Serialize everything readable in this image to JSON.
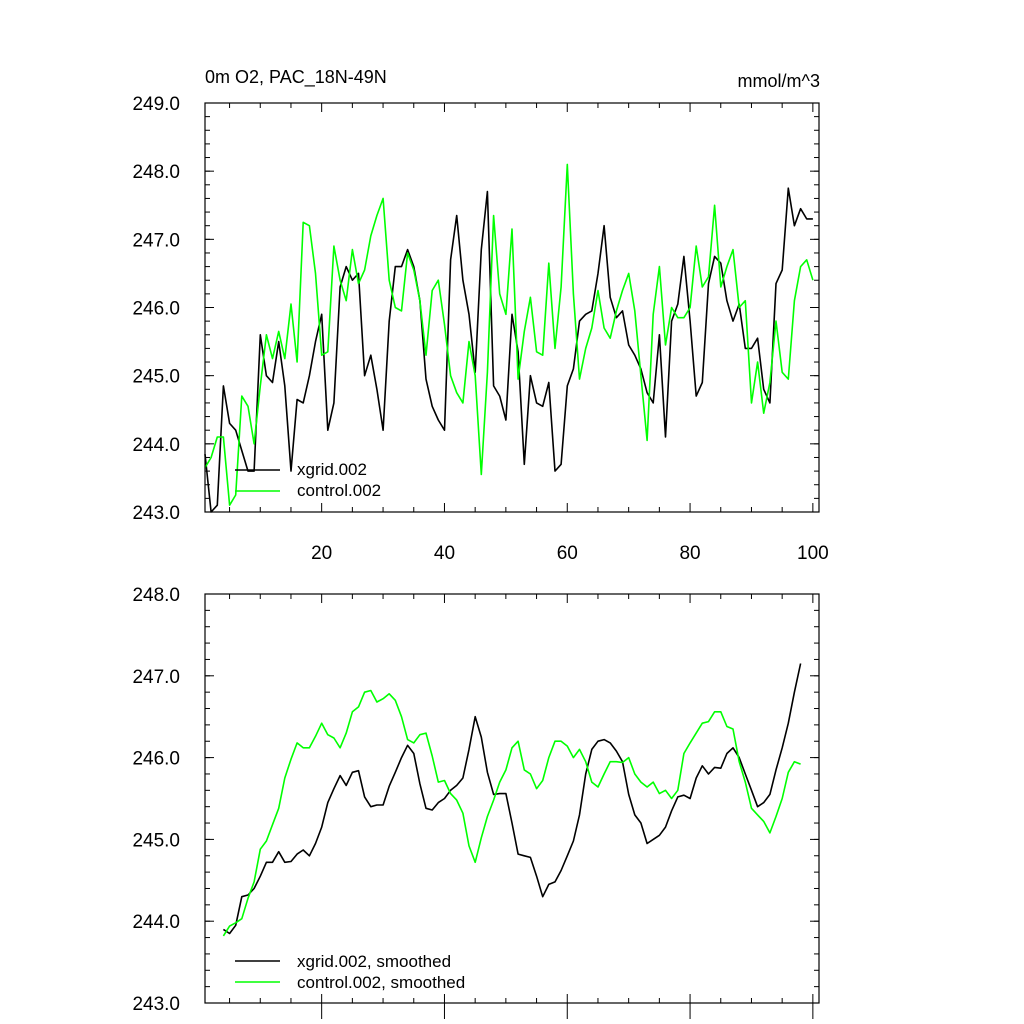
{
  "colors": {
    "xgrid": "#000000",
    "control": "#00ff00",
    "axis": "#000000",
    "background": "#ffffff"
  },
  "chart_data": [
    {
      "type": "line",
      "title": "0m O2, PAC_18N-49N",
      "units": "mmol/m^3",
      "xlabel": "",
      "ylabel": "",
      "xlim": [
        1,
        101
      ],
      "ylim": [
        243.0,
        249.0
      ],
      "yticks": [
        243.0,
        244.0,
        245.0,
        246.0,
        247.0,
        248.0,
        249.0
      ],
      "ytick_labels": [
        "243.0",
        "244.0",
        "245.0",
        "246.0",
        "247.0",
        "248.0",
        "249.0"
      ],
      "xticks": [
        20,
        40,
        60,
        80,
        100
      ],
      "xtick_labels": [
        "20",
        "40",
        "60",
        "80",
        "100"
      ],
      "legend_position": "bottom-left",
      "series": [
        {
          "name": "xgrid.002",
          "color": "#000000",
          "x": [
            1,
            2,
            3,
            4,
            5,
            6,
            7,
            8,
            9,
            10,
            11,
            12,
            13,
            14,
            15,
            16,
            17,
            18,
            19,
            20,
            21,
            22,
            23,
            24,
            25,
            26,
            27,
            28,
            29,
            30,
            31,
            32,
            33,
            34,
            35,
            36,
            37,
            38,
            39,
            40,
            41,
            42,
            43,
            44,
            45,
            46,
            47,
            48,
            49,
            50,
            51,
            52,
            53,
            54,
            55,
            56,
            57,
            58,
            59,
            60,
            61,
            62,
            63,
            64,
            65,
            66,
            67,
            68,
            69,
            70,
            71,
            72,
            73,
            74,
            75,
            76,
            77,
            78,
            79,
            80,
            81,
            82,
            83,
            84,
            85,
            86,
            87,
            88,
            89,
            90,
            91,
            92,
            93,
            94,
            95,
            96,
            97,
            98,
            99,
            100
          ],
          "values": [
            243.85,
            243.0,
            243.1,
            244.85,
            244.3,
            244.2,
            243.9,
            243.6,
            243.6,
            245.6,
            245.0,
            244.9,
            245.5,
            244.85,
            243.6,
            244.65,
            244.6,
            245.0,
            245.5,
            245.9,
            244.2,
            244.6,
            246.3,
            246.6,
            246.4,
            246.5,
            245.0,
            245.3,
            244.8,
            244.2,
            245.8,
            246.6,
            246.6,
            246.85,
            246.6,
            246.1,
            244.95,
            244.55,
            244.35,
            244.2,
            246.7,
            247.35,
            246.4,
            245.9,
            245.05,
            246.85,
            247.7,
            244.85,
            244.7,
            244.35,
            245.9,
            245.35,
            243.7,
            245.0,
            244.6,
            244.55,
            244.9,
            243.6,
            243.7,
            244.85,
            245.1,
            245.8,
            245.9,
            245.95,
            246.5,
            247.2,
            246.15,
            245.85,
            245.95,
            245.45,
            245.3,
            245.1,
            244.75,
            244.6,
            245.6,
            244.1,
            245.8,
            246.05,
            246.75,
            245.8,
            244.7,
            244.9,
            246.35,
            246.75,
            246.65,
            246.1,
            245.8,
            246.05,
            245.4,
            245.4,
            245.55,
            244.8,
            244.6,
            246.35,
            246.55,
            247.75,
            247.2,
            247.45,
            247.3,
            247.3
          ]
        },
        {
          "name": "control.002",
          "color": "#00ff00",
          "x": [
            1,
            2,
            3,
            4,
            5,
            6,
            7,
            8,
            9,
            10,
            11,
            12,
            13,
            14,
            15,
            16,
            17,
            18,
            19,
            20,
            21,
            22,
            23,
            24,
            25,
            26,
            27,
            28,
            29,
            30,
            31,
            32,
            33,
            34,
            35,
            36,
            37,
            38,
            39,
            40,
            41,
            42,
            43,
            44,
            45,
            46,
            47,
            48,
            49,
            50,
            51,
            52,
            53,
            54,
            55,
            56,
            57,
            58,
            59,
            60,
            61,
            62,
            63,
            64,
            65,
            66,
            67,
            68,
            69,
            70,
            71,
            72,
            73,
            74,
            75,
            76,
            77,
            78,
            79,
            80,
            81,
            82,
            83,
            84,
            85,
            86,
            87,
            88,
            89,
            90,
            91,
            92,
            93,
            94,
            95,
            96,
            97,
            98,
            99,
            100
          ],
          "values": [
            243.65,
            243.8,
            244.1,
            244.1,
            243.1,
            243.25,
            244.7,
            244.55,
            244.0,
            244.85,
            245.6,
            245.25,
            245.65,
            245.25,
            246.05,
            245.2,
            247.25,
            247.2,
            246.5,
            245.3,
            245.35,
            246.9,
            246.4,
            246.1,
            246.85,
            246.35,
            246.55,
            247.05,
            247.35,
            247.6,
            246.4,
            246.0,
            245.95,
            246.8,
            246.55,
            246.1,
            245.3,
            246.25,
            246.4,
            245.75,
            245.0,
            244.75,
            244.6,
            245.5,
            245.0,
            243.55,
            245.05,
            247.35,
            246.2,
            245.9,
            247.15,
            244.95,
            245.65,
            246.15,
            245.35,
            245.3,
            246.65,
            245.4,
            246.3,
            248.1,
            246.2,
            244.95,
            245.4,
            245.7,
            246.25,
            245.7,
            245.55,
            245.95,
            246.25,
            246.5,
            245.95,
            245.0,
            244.05,
            245.9,
            246.6,
            245.45,
            246.0,
            245.85,
            245.85,
            246.0,
            246.9,
            246.3,
            246.45,
            247.5,
            246.3,
            246.6,
            246.85,
            246.0,
            246.1,
            244.6,
            245.2,
            244.45,
            244.9,
            245.8,
            245.05,
            244.95,
            246.1,
            246.6,
            246.7,
            246.4
          ]
        }
      ]
    },
    {
      "type": "line",
      "title": "",
      "xlabel": "",
      "ylabel": "",
      "xlim": [
        1,
        101
      ],
      "ylim": [
        243.0,
        248.0
      ],
      "yticks": [
        243.0,
        244.0,
        245.0,
        246.0,
        247.0,
        248.0
      ],
      "ytick_labels": [
        "243.0",
        "244.0",
        "245.0",
        "246.0",
        "247.0",
        "248.0"
      ],
      "xticks": [
        20,
        40,
        60,
        80,
        100
      ],
      "xtick_labels": [],
      "legend_position": "bottom-left",
      "series": [
        {
          "name": "xgrid.002, smoothed",
          "color": "#000000",
          "x": [
            4,
            5,
            6,
            7,
            8,
            9,
            10,
            11,
            12,
            13,
            14,
            15,
            16,
            17,
            18,
            19,
            20,
            21,
            22,
            23,
            24,
            25,
            26,
            27,
            28,
            29,
            30,
            31,
            32,
            33,
            34,
            35,
            36,
            37,
            38,
            39,
            40,
            41,
            42,
            43,
            44,
            45,
            46,
            47,
            48,
            49,
            50,
            51,
            52,
            53,
            54,
            55,
            56,
            57,
            58,
            59,
            60,
            61,
            62,
            63,
            64,
            65,
            66,
            67,
            68,
            69,
            70,
            71,
            72,
            73,
            74,
            75,
            76,
            77,
            78,
            79,
            80,
            81,
            82,
            83,
            84,
            85,
            86,
            87,
            88,
            89,
            90,
            91,
            92,
            93,
            94,
            95,
            96,
            97,
            98
          ],
          "values": [
            243.9,
            243.85,
            243.95,
            244.3,
            244.32,
            244.4,
            244.55,
            244.72,
            244.72,
            244.85,
            244.72,
            244.73,
            244.82,
            244.87,
            244.8,
            244.95,
            245.15,
            245.45,
            245.62,
            245.78,
            245.66,
            245.82,
            245.84,
            245.52,
            245.4,
            245.42,
            245.42,
            245.65,
            245.82,
            246.0,
            246.15,
            246.05,
            245.68,
            245.38,
            245.36,
            245.45,
            245.5,
            245.6,
            245.66,
            245.75,
            246.1,
            246.5,
            246.25,
            245.82,
            245.55,
            245.56,
            245.56,
            245.2,
            244.82,
            244.8,
            244.78,
            244.55,
            244.3,
            244.45,
            244.48,
            244.62,
            244.8,
            244.98,
            245.3,
            245.8,
            246.1,
            246.2,
            246.22,
            246.18,
            246.08,
            245.95,
            245.55,
            245.3,
            245.2,
            244.95,
            245.0,
            245.05,
            245.15,
            245.35,
            245.52,
            245.54,
            245.5,
            245.75,
            245.9,
            245.8,
            245.88,
            245.87,
            246.05,
            246.12,
            246.0,
            245.8,
            245.6,
            245.4,
            245.45,
            245.55,
            245.85,
            246.12,
            246.42,
            246.8,
            247.15
          ]
        },
        {
          "name": "control.002, smoothed",
          "color": "#00ff00",
          "x": [
            4,
            5,
            6,
            7,
            8,
            9,
            10,
            11,
            12,
            13,
            14,
            15,
            16,
            17,
            18,
            19,
            20,
            21,
            22,
            23,
            24,
            25,
            26,
            27,
            28,
            29,
            30,
            31,
            32,
            33,
            34,
            35,
            36,
            37,
            38,
            39,
            40,
            41,
            42,
            43,
            44,
            45,
            46,
            47,
            48,
            49,
            50,
            51,
            52,
            53,
            54,
            55,
            56,
            57,
            58,
            59,
            60,
            61,
            62,
            63,
            64,
            65,
            66,
            67,
            68,
            69,
            70,
            71,
            72,
            73,
            74,
            75,
            76,
            77,
            78,
            79,
            80,
            81,
            82,
            83,
            84,
            85,
            86,
            87,
            88,
            89,
            90,
            91,
            92,
            93,
            94,
            95,
            96,
            97,
            98
          ],
          "values": [
            243.82,
            243.94,
            243.98,
            244.03,
            244.28,
            244.48,
            244.88,
            244.98,
            245.18,
            245.38,
            245.75,
            245.98,
            246.18,
            246.12,
            246.12,
            246.26,
            246.42,
            246.28,
            246.24,
            246.12,
            246.3,
            246.56,
            246.62,
            246.8,
            246.82,
            246.68,
            246.72,
            246.78,
            246.7,
            246.5,
            246.22,
            246.18,
            246.28,
            246.3,
            246.02,
            245.7,
            245.72,
            245.56,
            245.48,
            245.32,
            244.92,
            244.72,
            245.02,
            245.28,
            245.48,
            245.7,
            245.85,
            246.12,
            246.2,
            245.85,
            245.8,
            245.62,
            245.72,
            246.0,
            246.2,
            246.2,
            246.14,
            246.0,
            246.1,
            245.95,
            245.7,
            245.64,
            245.8,
            245.95,
            245.95,
            245.94,
            246.0,
            245.8,
            245.7,
            245.64,
            245.7,
            245.56,
            245.6,
            245.5,
            245.6,
            246.05,
            246.18,
            246.3,
            246.42,
            246.44,
            246.56,
            246.56,
            246.38,
            246.35,
            245.95,
            245.7,
            245.38,
            245.3,
            245.22,
            245.08,
            245.28,
            245.5,
            245.82,
            245.95,
            245.92
          ]
        }
      ]
    }
  ]
}
